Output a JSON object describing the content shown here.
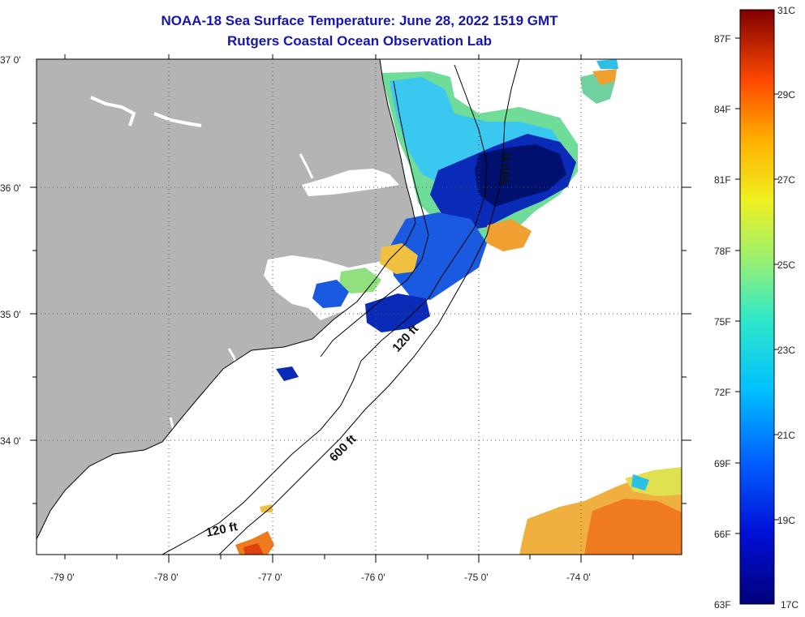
{
  "title": {
    "line1": "NOAA-18 Sea Surface Temperature:  June 28, 2022 1519 GMT",
    "line2": "Rutgers Coastal Ocean Observation Lab"
  },
  "lat_labels": [
    "37 0'",
    "36 0'",
    "35 0'",
    "34 0'"
  ],
  "lon_labels": [
    "-79 0'",
    "-78 0'",
    "-77 0'",
    "-76 0'",
    "-75 0'",
    "-74 0'"
  ],
  "contour_labels": [
    "120 ft",
    "600 ft",
    "120 ft",
    "600 ft"
  ],
  "colorbar": {
    "fahrenheit": [
      "87F",
      "84F",
      "81F",
      "78F",
      "75F",
      "72F",
      "69F",
      "66F",
      "63F"
    ],
    "celsius": [
      "31C",
      "29C",
      "27C",
      "25C",
      "23C",
      "21C",
      "19C",
      "17C"
    ]
  },
  "colors": {
    "title": "#1515b0",
    "land": "#b4b4b4",
    "cold": "#0a1a9e",
    "cyan": "#2ad0f0",
    "green": "#70e08a",
    "yellow": "#f0e040",
    "orange": "#f08a20",
    "red": "#e03010"
  }
}
